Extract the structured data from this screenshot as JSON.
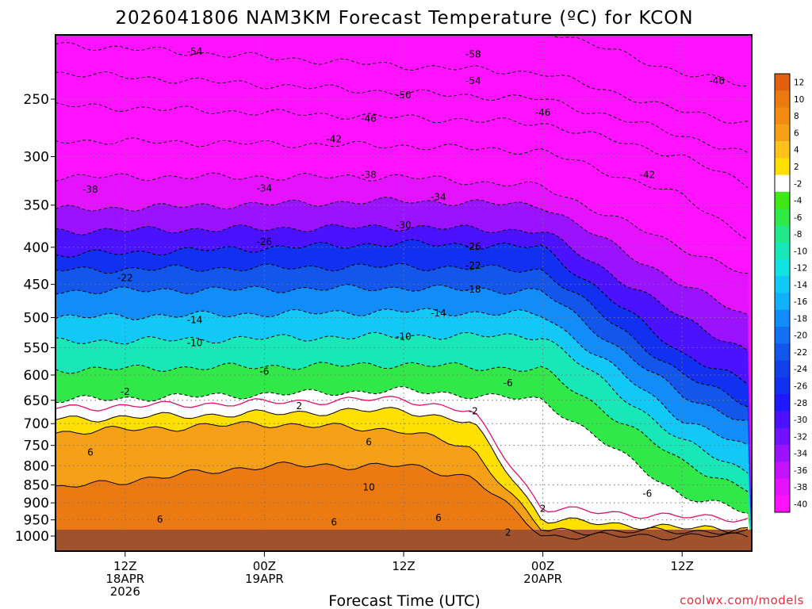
{
  "chart_data": {
    "type": "heatmap",
    "title": "2026041806 NAM3KM Forecast Temperature (ºC) for KCON",
    "xlabel": "Forecast Time (UTC)",
    "credit": "coolwx.com/models",
    "y_axis": {
      "quantity": "pressure (mb)",
      "scale": "log",
      "reversed": true,
      "range": [
        1000,
        200
      ],
      "ticks": [
        250,
        300,
        350,
        400,
        450,
        500,
        550,
        600,
        650,
        700,
        750,
        800,
        850,
        900,
        950,
        1000
      ]
    },
    "x_axis": {
      "quantity": "forecast time (UTC)",
      "range": [
        "2026-04-18 06Z",
        "2026-04-20 18Z"
      ],
      "ticks": [
        {
          "time": "2026-04-18 12Z",
          "lines": [
            "12Z",
            "18APR",
            "2026"
          ]
        },
        {
          "time": "2026-04-19 00Z",
          "lines": [
            "00Z",
            "19APR"
          ]
        },
        {
          "time": "2026-04-19 12Z",
          "lines": [
            "12Z"
          ]
        },
        {
          "time": "2026-04-20 00Z",
          "lines": [
            "00Z",
            "20APR"
          ]
        },
        {
          "time": "2026-04-20 12Z",
          "lines": [
            "12Z"
          ]
        }
      ]
    },
    "grid": true,
    "colorbar": {
      "placement": "right",
      "labels": [
        "12",
        "10",
        "8",
        "6",
        "4",
        "2",
        "-2",
        "-4",
        "-6",
        "-8",
        "-10",
        "-12",
        "-14",
        "-16",
        "-18",
        "-20",
        "-22",
        "-24",
        "-26",
        "-28",
        "-30",
        "-32",
        "-34",
        "-36",
        "-38",
        "-40"
      ],
      "colors": [
        "#e06010",
        "#ec7a12",
        "#f28a14",
        "#f6a018",
        "#ffc21c",
        "#ffe000",
        "#ffffff",
        "#40e818",
        "#30e848",
        "#22e88a",
        "#18e8b8",
        "#12e2e2",
        "#12c8f6",
        "#12b0fa",
        "#128cf8",
        "#1270f2",
        "#1256ea",
        "#1240e8",
        "#1230f0",
        "#2018ff",
        "#4a12ff",
        "#6e12ff",
        "#9a12ff",
        "#c412ff",
        "#e412ff",
        "#ff12ff"
      ]
    },
    "temperature_bands": [
      {
        "temp_c": -58,
        "times": [
          "2026-04-18 06Z",
          "2026-04-19 12Z",
          "2026-04-20 00Z",
          "2026-04-20 12Z",
          "2026-04-20 18Z"
        ],
        "pressure_mb": [
          195,
          195,
          200,
          230,
          240
        ]
      },
      {
        "temp_c": -54,
        "times": [
          "2026-04-18 06Z",
          "2026-04-19 12Z",
          "2026-04-20 00Z",
          "2026-04-20 12Z",
          "2026-04-20 18Z"
        ],
        "pressure_mb": [
          210,
          225,
          230,
          260,
          270
        ]
      },
      {
        "temp_c": -50,
        "times": [
          "2026-04-18 06Z",
          "2026-04-19 12Z",
          "2026-04-20 00Z",
          "2026-04-20 12Z",
          "2026-04-20 18Z"
        ],
        "pressure_mb": [
          230,
          245,
          250,
          280,
          300
        ]
      },
      {
        "temp_c": -46,
        "times": [
          "2026-04-18 06Z",
          "2026-04-19 12Z",
          "2026-04-20 00Z",
          "2026-04-20 12Z",
          "2026-04-20 18Z"
        ],
        "pressure_mb": [
          255,
          265,
          270,
          300,
          330
        ]
      },
      {
        "temp_c": -42,
        "times": [
          "2026-04-18 06Z",
          "2026-04-19 12Z",
          "2026-04-20 00Z",
          "2026-04-20 12Z",
          "2026-04-20 18Z"
        ],
        "pressure_mb": [
          285,
          290,
          295,
          340,
          390
        ]
      },
      {
        "temp_c": -38,
        "times": [
          "2026-04-18 06Z",
          "2026-04-19 12Z",
          "2026-04-20 00Z",
          "2026-04-20 12Z",
          "2026-04-20 18Z"
        ],
        "pressure_mb": [
          320,
          320,
          330,
          400,
          440
        ]
      },
      {
        "temp_c": -34,
        "times": [
          "2026-04-18 06Z",
          "2026-04-19 12Z",
          "2026-04-20 00Z",
          "2026-04-20 12Z",
          "2026-04-20 18Z"
        ],
        "pressure_mb": [
          355,
          345,
          350,
          450,
          500
        ]
      },
      {
        "temp_c": -30,
        "times": [
          "2026-04-18 06Z",
          "2026-04-19 12Z",
          "2026-04-20 00Z",
          "2026-04-20 12Z",
          "2026-04-20 18Z"
        ],
        "pressure_mb": [
          380,
          375,
          380,
          500,
          560
        ]
      },
      {
        "temp_c": -26,
        "times": [
          "2026-04-18 06Z",
          "2026-04-19 12Z",
          "2026-04-20 00Z",
          "2026-04-20 12Z",
          "2026-04-20 18Z"
        ],
        "pressure_mb": [
          410,
          395,
          400,
          560,
          620
        ]
      },
      {
        "temp_c": -22,
        "times": [
          "2026-04-18 06Z",
          "2026-04-19 12Z",
          "2026-04-20 00Z",
          "2026-04-20 12Z",
          "2026-04-20 18Z"
        ],
        "pressure_mb": [
          430,
          425,
          430,
          600,
          660
        ]
      },
      {
        "temp_c": -18,
        "times": [
          "2026-04-18 06Z",
          "2026-04-19 12Z",
          "2026-04-20 00Z",
          "2026-04-20 12Z",
          "2026-04-20 18Z"
        ],
        "pressure_mb": [
          460,
          455,
          460,
          640,
          700
        ]
      },
      {
        "temp_c": -14,
        "times": [
          "2026-04-18 06Z",
          "2026-04-19 12Z",
          "2026-04-20 00Z",
          "2026-04-20 12Z",
          "2026-04-20 18Z"
        ],
        "pressure_mb": [
          500,
          490,
          495,
          690,
          760
        ]
      },
      {
        "temp_c": -10,
        "times": [
          "2026-04-18 06Z",
          "2026-04-19 12Z",
          "2026-04-20 00Z",
          "2026-04-20 12Z",
          "2026-04-20 18Z"
        ],
        "pressure_mb": [
          540,
          530,
          530,
          740,
          820
        ]
      },
      {
        "temp_c": -6,
        "times": [
          "2026-04-18 06Z",
          "2026-04-19 12Z",
          "2026-04-20 00Z",
          "2026-04-20 12Z",
          "2026-04-20 18Z"
        ],
        "pressure_mb": [
          590,
          580,
          590,
          790,
          870
        ]
      },
      {
        "temp_c": -2,
        "times": [
          "2026-04-18 06Z",
          "2026-04-19 12Z",
          "2026-04-20 00Z",
          "2026-04-20 12Z",
          "2026-04-20 18Z"
        ],
        "pressure_mb": [
          650,
          630,
          650,
          880,
          930
        ]
      },
      {
        "temp_c": 2,
        "times": [
          "2026-04-18 06Z",
          "2026-04-19 12Z",
          "2026-04-19 18Z",
          "2026-04-20 00Z",
          "2026-04-20 12Z",
          "2026-04-20 18Z"
        ],
        "pressure_mb": [
          690,
          670,
          700,
          950,
          975,
          980
        ]
      },
      {
        "temp_c": 6,
        "times": [
          "2026-04-18 06Z",
          "2026-04-19 00Z",
          "2026-04-19 12Z",
          "2026-04-19 18Z",
          "2026-04-20 00Z"
        ],
        "pressure_mb": [
          720,
          700,
          715,
          760,
          985
        ]
      },
      {
        "temp_c": 10,
        "times": [
          "2026-04-18 06Z",
          "2026-04-19 00Z",
          "2026-04-19 12Z",
          "2026-04-19 18Z",
          "2026-04-20 00Z"
        ],
        "pressure_mb": [
          860,
          800,
          800,
          830,
          1000
        ]
      }
    ],
    "surface_level_mb": 980,
    "contour_labels": [
      {
        "label": "-54",
        "time": "2026-04-18 18Z",
        "pressure_mb": 215
      },
      {
        "label": "-58",
        "time": "2026-04-19 18Z",
        "pressure_mb": 217
      },
      {
        "label": "-54",
        "time": "2026-04-19 18Z",
        "pressure_mb": 236
      },
      {
        "label": "-46",
        "time": "2026-04-20 15Z",
        "pressure_mb": 236
      },
      {
        "label": "-50",
        "time": "2026-04-19 12Z",
        "pressure_mb": 247
      },
      {
        "label": "-46",
        "time": "2026-04-19 09Z",
        "pressure_mb": 266
      },
      {
        "label": "-46",
        "time": "2026-04-20 00Z",
        "pressure_mb": 261
      },
      {
        "label": "-42",
        "time": "2026-04-19 06Z",
        "pressure_mb": 284
      },
      {
        "label": "-42",
        "time": "2026-04-20 09Z",
        "pressure_mb": 318
      },
      {
        "label": "-38",
        "time": "2026-04-18 09Z",
        "pressure_mb": 333
      },
      {
        "label": "-38",
        "time": "2026-04-19 09Z",
        "pressure_mb": 318
      },
      {
        "label": "-34",
        "time": "2026-04-19 00Z",
        "pressure_mb": 332
      },
      {
        "label": "-34",
        "time": "2026-04-19 15Z",
        "pressure_mb": 341
      },
      {
        "label": "-30",
        "time": "2026-04-19 12Z",
        "pressure_mb": 373
      },
      {
        "label": "-26",
        "time": "2026-04-19 00Z",
        "pressure_mb": 393
      },
      {
        "label": "-26",
        "time": "2026-04-19 18Z",
        "pressure_mb": 399
      },
      {
        "label": "-22",
        "time": "2026-04-19 18Z",
        "pressure_mb": 424
      },
      {
        "label": "-22",
        "time": "2026-04-18 12Z",
        "pressure_mb": 441
      },
      {
        "label": "-18",
        "time": "2026-04-19 18Z",
        "pressure_mb": 457
      },
      {
        "label": "-14",
        "time": "2026-04-19 15Z",
        "pressure_mb": 493
      },
      {
        "label": "-14",
        "time": "2026-04-18 18Z",
        "pressure_mb": 504
      },
      {
        "label": "-10",
        "time": "2026-04-19 12Z",
        "pressure_mb": 531
      },
      {
        "label": "-10",
        "time": "2026-04-18 18Z",
        "pressure_mb": 542
      },
      {
        "label": "-6",
        "time": "2026-04-19 00Z",
        "pressure_mb": 593
      },
      {
        "label": "-6",
        "time": "2026-04-19 21Z",
        "pressure_mb": 615
      },
      {
        "label": "-2",
        "time": "2026-04-18 12Z",
        "pressure_mb": 633
      },
      {
        "label": "-2",
        "time": "2026-04-19 18Z",
        "pressure_mb": 673
      },
      {
        "label": "2",
        "time": "2026-04-19 03Z",
        "pressure_mb": 662
      },
      {
        "label": "2",
        "time": "2026-04-20 00Z",
        "pressure_mb": 917
      },
      {
        "label": "2",
        "time": "2026-04-19 21Z",
        "pressure_mb": 989
      },
      {
        "label": "6",
        "time": "2026-04-18 09Z",
        "pressure_mb": 767
      },
      {
        "label": "6",
        "time": "2026-04-19 09Z",
        "pressure_mb": 742
      },
      {
        "label": "6",
        "time": "2026-04-18 15Z",
        "pressure_mb": 949
      },
      {
        "label": "6",
        "time": "2026-04-19 06Z",
        "pressure_mb": 957
      },
      {
        "label": "6",
        "time": "2026-04-19 15Z",
        "pressure_mb": 944
      },
      {
        "label": "-6",
        "time": "2026-04-20 09Z",
        "pressure_mb": 874
      },
      {
        "label": "10",
        "time": "2026-04-19 09Z",
        "pressure_mb": 857
      }
    ]
  }
}
